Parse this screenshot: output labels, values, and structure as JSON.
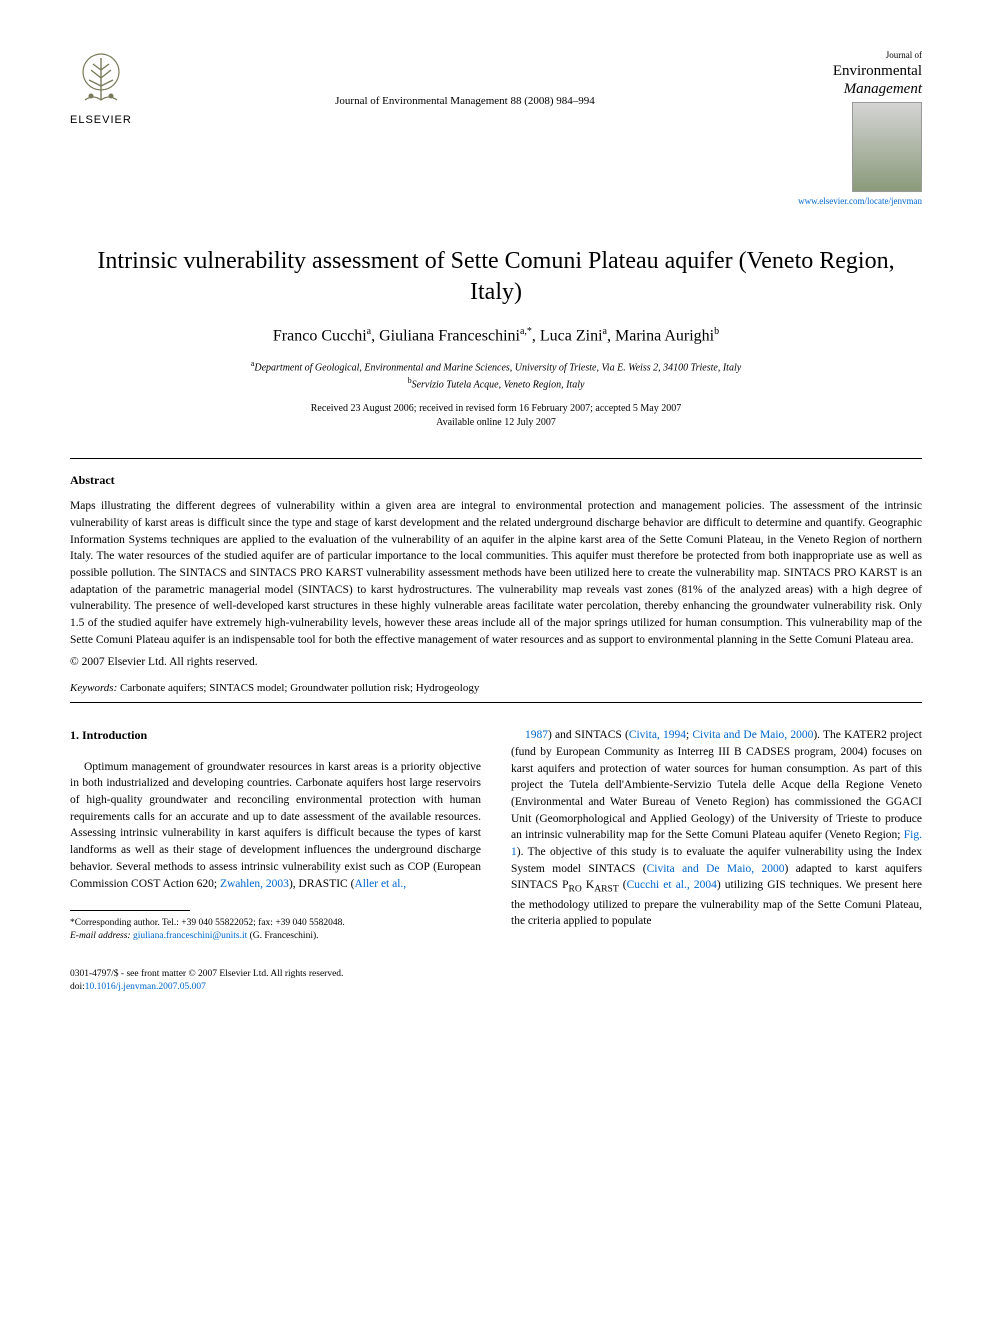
{
  "publisher": {
    "name": "ELSEVIER"
  },
  "journal": {
    "reference": "Journal of Environmental Management 88 (2008) 984–994",
    "box_label": "Journal of",
    "box_title_line1": "Environmental",
    "box_title_line2": "Management",
    "link": "www.elsevier.com/locate/jenvman"
  },
  "article": {
    "title": "Intrinsic vulnerability assessment of Sette Comuni Plateau aquifer (Veneto Region, Italy)",
    "authors_html": "Franco Cucchi<sup>a</sup>, Giuliana Franceschini<sup>a,*</sup>, Luca Zini<sup>a</sup>, Marina Aurighi<sup>b</sup>",
    "affiliations": [
      {
        "sup": "a",
        "text": "Department of Geological, Environmental and Marine Sciences, University of Trieste, Via E. Weiss 2, 34100 Trieste, Italy"
      },
      {
        "sup": "b",
        "text": "Servizio Tutela Acque, Veneto Region, Italy"
      }
    ],
    "dates_line1": "Received 23 August 2006; received in revised form 16 February 2007; accepted 5 May 2007",
    "dates_line2": "Available online 12 July 2007"
  },
  "abstract": {
    "heading": "Abstract",
    "text": "Maps illustrating the different degrees of vulnerability within a given area are integral to environmental protection and management policies. The assessment of the intrinsic vulnerability of karst areas is difficult since the type and stage of karst development and the related underground discharge behavior are difficult to determine and quantify. Geographic Information Systems techniques are applied to the evaluation of the vulnerability of an aquifer in the alpine karst area of the Sette Comuni Plateau, in the Veneto Region of northern Italy. The water resources of the studied aquifer are of particular importance to the local communities. This aquifer must therefore be protected from both inappropriate use as well as possible pollution. The SINTACS and SINTACS PRO KARST vulnerability assessment methods have been utilized here to create the vulnerability map. SINTACS PRO KARST is an adaptation of the parametric managerial model (SINTACS) to karst hydrostructures. The vulnerability map reveals vast zones (81% of the analyzed areas) with a high degree of vulnerability. The presence of well-developed karst structures in these highly vulnerable areas facilitate water percolation, thereby enhancing the groundwater vulnerability risk. Only 1.5 of the studied aquifer have extremely high-vulnerability levels, however these areas include all of the major springs utilized for human consumption. This vulnerability map of the Sette Comuni Plateau aquifer is an indispensable tool for both the effective management of water resources and as support to environmental planning in the Sette Comuni Plateau area.",
    "copyright": "© 2007 Elsevier Ltd. All rights reserved."
  },
  "keywords": {
    "label": "Keywords:",
    "text": "Carbonate aquifers; SINTACS model; Groundwater pollution risk; Hydrogeology"
  },
  "body": {
    "intro_heading": "1. Introduction",
    "col_left": "Optimum management of groundwater resources in karst areas is a priority objective in both industrialized and developing countries. Carbonate aquifers host large reservoirs of high-quality groundwater and reconciling environmental protection with human requirements calls for an accurate and up to date assessment of the available resources. Assessing intrinsic vulnerability in karst aquifers is difficult because the types of karst landforms as well as their stage of development influences the underground discharge behavior. Several methods to assess intrinsic vulnerability exist such as COP (European Commission COST Action 620; <a>Zwahlen, 2003</a>), DRASTIC (<a>Aller et al.,</a>",
    "col_right": "<a>1987</a>) and SINTACS (<a>Civita, 1994</a>; <a>Civita and De Maio, 2000</a>). The KATER2 project (fund by European Community as Interreg III B CADSES program, 2004) focuses on karst aquifers and protection of water sources for human consumption. As part of this project the Tutela dell'Ambiente-Servizio Tutela delle Acque della Regione Veneto (Environmental and Water Bureau of Veneto Region) has commissioned the GGACI Unit (Geomorphological and Applied Geology) of the University of Trieste to produce an intrinsic vulnerability map for the Sette Comuni Plateau aquifer (Veneto Region; <a>Fig. 1</a>). The objective of this study is to evaluate the aquifer vulnerability using the Index System model SINTACS (<a>Civita and De Maio, 2000</a>) adapted to karst aquifers SINTACS P<sub>RO</sub> K<sub>ARST</sub> (<a>Cucchi et al., 2004</a>) utilizing GIS techniques. We present here the methodology utilized to prepare the vulnerability map of the Sette Comuni Plateau, the criteria applied to populate"
  },
  "footnote": {
    "corresponding": "*Corresponding author. Tel.: +39 040 55822052; fax: +39 040 5582048.",
    "email_label": "E-mail address:",
    "email": "giuliana.franceschini@units.it",
    "email_name": "(G. Franceschini)."
  },
  "footer": {
    "line1": "0301-4797/$ - see front matter © 2007 Elsevier Ltd. All rights reserved.",
    "doi_label": "doi:",
    "doi": "10.1016/j.jenvman.2007.05.007"
  }
}
